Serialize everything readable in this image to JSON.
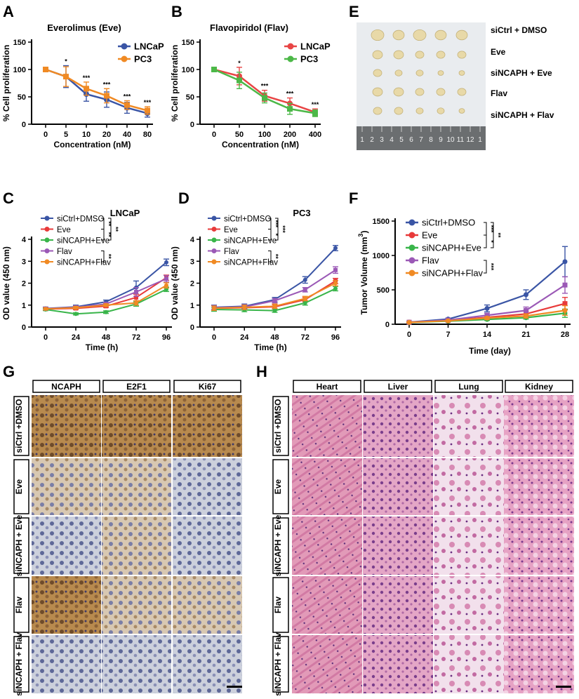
{
  "panels": {
    "A": "A",
    "B": "B",
    "C": "C",
    "D": "D",
    "E": "E",
    "F": "F",
    "G": "G",
    "H": "H"
  },
  "colors": {
    "blue": "#3a55a5",
    "orange": "#f08a24",
    "red": "#e83a3a",
    "green": "#39b54a",
    "purple": "#9b59b6",
    "lncap_red": "#e84545",
    "pc3_green": "#4cb848"
  },
  "stars": {
    "s1": "*",
    "s2": "**",
    "s3": "***"
  },
  "chart_data": [
    {
      "id": "A",
      "type": "line",
      "title": "Everolimus (Eve)",
      "xlabel": "Concentration (nM)",
      "ylabel": "% Cell proliferation",
      "categories": [
        "0",
        "5",
        "10",
        "20",
        "40",
        "80"
      ],
      "ylim": [
        0,
        150
      ],
      "yticks": [
        "0",
        "50",
        "100",
        "150"
      ],
      "series": [
        {
          "name": "LNCaP",
          "color": "#3a55a5",
          "values": [
            100,
            87,
            55,
            45,
            30,
            20
          ],
          "err": [
            2,
            20,
            13,
            14,
            10,
            7
          ]
        },
        {
          "name": "PC3",
          "color": "#f08a24",
          "values": [
            100,
            87,
            65,
            52,
            35,
            25
          ],
          "err": [
            2,
            18,
            12,
            13,
            8,
            7
          ]
        }
      ],
      "sig": [
        "",
        "*",
        "***",
        "***",
        "***",
        "***"
      ]
    },
    {
      "id": "B",
      "type": "line",
      "title": "Flavopiridol (Flav)",
      "xlabel": "Concentration (nM)",
      "ylabel": "% Cell proliferation",
      "categories": [
        "0",
        "50",
        "100",
        "200",
        "400"
      ],
      "ylim": [
        0,
        150
      ],
      "yticks": [
        "0",
        "50",
        "100",
        "150"
      ],
      "series": [
        {
          "name": "LNCaP",
          "color": "#e84545",
          "values": [
            100,
            88,
            52,
            38,
            22
          ],
          "err": [
            2,
            16,
            10,
            10,
            6
          ]
        },
        {
          "name": "PC3",
          "color": "#4cb848",
          "values": [
            100,
            80,
            48,
            28,
            20
          ],
          "err": [
            2,
            15,
            9,
            10,
            6
          ]
        }
      ],
      "sig": [
        "",
        "*",
        "***",
        "***",
        "***"
      ]
    },
    {
      "id": "C",
      "type": "line",
      "title": "LNCaP",
      "xlabel": "Time (h)",
      "ylabel": "OD value (450 nm)",
      "categories": [
        "0",
        "24",
        "48",
        "72",
        "96"
      ],
      "ylim": [
        0,
        4
      ],
      "yticks": [
        "0",
        "1",
        "2",
        "3",
        "4"
      ],
      "series": [
        {
          "name": "siCtrl+DMSO",
          "color": "#3a55a5",
          "values": [
            0.85,
            0.92,
            1.15,
            1.8,
            2.95
          ],
          "err": [
            0.06,
            0.08,
            0.08,
            0.3,
            0.15
          ]
        },
        {
          "name": "Eve",
          "color": "#e83a3a",
          "values": [
            0.82,
            0.85,
            0.95,
            1.35,
            2.25
          ],
          "err": [
            0.05,
            0.06,
            0.06,
            0.15,
            0.12
          ]
        },
        {
          "name": "siNCAPH+Eve",
          "color": "#39b54a",
          "values": [
            0.8,
            0.6,
            0.68,
            1.05,
            1.72
          ],
          "err": [
            0.05,
            0.05,
            0.06,
            0.1,
            0.1
          ]
        },
        {
          "name": "Flav",
          "color": "#9b59b6",
          "values": [
            0.84,
            0.9,
            1.05,
            1.6,
            2.2
          ],
          "err": [
            0.05,
            0.06,
            0.07,
            0.2,
            0.15
          ]
        },
        {
          "name": "siNCAPH+Flav",
          "color": "#f08a24",
          "values": [
            0.83,
            0.88,
            1.0,
            1.1,
            1.9
          ],
          "err": [
            0.05,
            0.06,
            0.06,
            0.1,
            0.12
          ]
        }
      ],
      "sig_labels": [
        "**",
        "**",
        "**",
        "**"
      ]
    },
    {
      "id": "D",
      "type": "line",
      "title": "PC3",
      "xlabel": "Time (h)",
      "ylabel": "OD value (450 nm)",
      "categories": [
        "0",
        "24",
        "48",
        "72",
        "96"
      ],
      "ylim": [
        0,
        4
      ],
      "yticks": [
        "0",
        "1",
        "2",
        "3",
        "4"
      ],
      "series": [
        {
          "name": "siCtrl+DMSO",
          "color": "#3a55a5",
          "values": [
            0.9,
            0.95,
            1.25,
            2.15,
            3.6
          ],
          "err": [
            0.1,
            0.1,
            0.1,
            0.15,
            0.12
          ]
        },
        {
          "name": "Eve",
          "color": "#e83a3a",
          "values": [
            0.85,
            0.88,
            0.92,
            1.25,
            2.1
          ],
          "err": [
            0.1,
            0.1,
            0.1,
            0.1,
            0.12
          ]
        },
        {
          "name": "siNCAPH+Eve",
          "color": "#39b54a",
          "values": [
            0.8,
            0.78,
            0.75,
            1.1,
            1.75
          ],
          "err": [
            0.08,
            0.08,
            0.08,
            0.1,
            0.1
          ]
        },
        {
          "name": "Flav",
          "color": "#9b59b6",
          "values": [
            0.88,
            0.92,
            1.2,
            1.7,
            2.6
          ],
          "err": [
            0.1,
            0.1,
            0.1,
            0.1,
            0.15
          ]
        },
        {
          "name": "siNCAPH+Flav",
          "color": "#f08a24",
          "values": [
            0.86,
            0.9,
            0.95,
            1.3,
            2.0
          ],
          "err": [
            0.1,
            0.1,
            0.1,
            0.1,
            0.12
          ]
        }
      ],
      "sig_labels": [
        "***",
        "*",
        "***",
        "**"
      ]
    },
    {
      "id": "F",
      "type": "line",
      "title": "",
      "xlabel": "Time (day)",
      "ylabel": "Tumor Volume (mm",
      "ylabel_sup": "3",
      "ylabel_end": ")",
      "categories": [
        "0",
        "7",
        "14",
        "21",
        "28"
      ],
      "ylim": [
        0,
        1500
      ],
      "yticks": [
        "0",
        "500",
        "1000",
        "1500"
      ],
      "series": [
        {
          "name": "siCtrl+DMSO",
          "color": "#3a55a5",
          "values": [
            30,
            75,
            230,
            430,
            910
          ],
          "err": [
            10,
            15,
            50,
            70,
            220
          ]
        },
        {
          "name": "Eve",
          "color": "#e83a3a",
          "values": [
            28,
            55,
            100,
            150,
            300
          ],
          "err": [
            8,
            10,
            20,
            40,
            90
          ]
        },
        {
          "name": "siNCAPH+Eve",
          "color": "#39b54a",
          "values": [
            25,
            45,
            70,
            95,
            160
          ],
          "err": [
            8,
            10,
            15,
            20,
            60
          ]
        },
        {
          "name": "Flav",
          "color": "#9b59b6",
          "values": [
            28,
            60,
            130,
            200,
            570
          ],
          "err": [
            8,
            12,
            30,
            50,
            120
          ]
        },
        {
          "name": "siNCAPH+Flav",
          "color": "#f08a24",
          "values": [
            27,
            50,
            90,
            120,
            200
          ],
          "err": [
            8,
            10,
            20,
            30,
            70
          ]
        }
      ],
      "sig_labels": [
        "***",
        "*",
        "**",
        "***"
      ]
    }
  ],
  "tumor_photo": {
    "labels": [
      "siCtrl + DMSO",
      "Eve",
      "siNCAPH + Eve",
      "Flav",
      "siNCAPH + Flav"
    ],
    "ruler": [
      "1",
      "2",
      "3",
      "4",
      "5",
      "6",
      "7",
      "8",
      "9",
      "10",
      "11",
      "12",
      "1"
    ]
  },
  "ihc": {
    "columns": [
      "NCAPH",
      "E2F1",
      "Ki67"
    ],
    "rows": [
      "siCtrl +DMSO",
      "Eve",
      "siNCAPH + Eve",
      "Flav",
      "siNCAPH + Flav"
    ]
  },
  "he": {
    "columns": [
      "Heart",
      "Liver",
      "Lung",
      "Kidney"
    ],
    "rows": [
      "siCtrl +DMSO",
      "Eve",
      "siNCAPH + Eve",
      "Flav",
      "siNCAPH + Flav"
    ]
  }
}
